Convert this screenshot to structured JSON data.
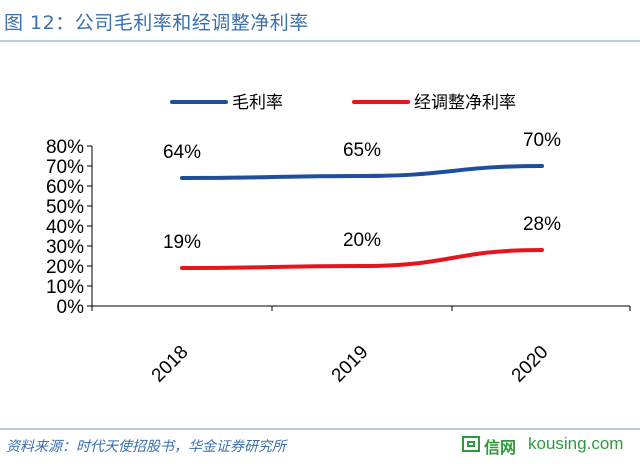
{
  "header": {
    "title": "图 12：公司毛利率和经调整净利率"
  },
  "footer": {
    "source": "资料来源：时代天使招股书，华金证券研究所",
    "watermark_name": "信网",
    "watermark_domain": "kousing.com"
  },
  "chart_data": {
    "type": "line",
    "categories": [
      "2018",
      "2019",
      "2020"
    ],
    "series": [
      {
        "name": "毛利率",
        "values": [
          64,
          65,
          70
        ],
        "labels": [
          "64%",
          "65%",
          "70%"
        ],
        "color": "#1f4e9c"
      },
      {
        "name": "经调整净利率",
        "values": [
          19,
          20,
          28
        ],
        "labels": [
          "19%",
          "20%",
          "28%"
        ],
        "color": "#e8141c"
      }
    ],
    "ylim": [
      0,
      80
    ],
    "yticks": [
      0,
      10,
      20,
      30,
      40,
      50,
      60,
      70,
      80
    ],
    "ytick_labels": [
      "0%",
      "10%",
      "20%",
      "30%",
      "40%",
      "50%",
      "60%",
      "70%",
      "80%"
    ],
    "title": "",
    "xlabel": "",
    "ylabel": "",
    "grid": false,
    "legend_position": "top"
  }
}
